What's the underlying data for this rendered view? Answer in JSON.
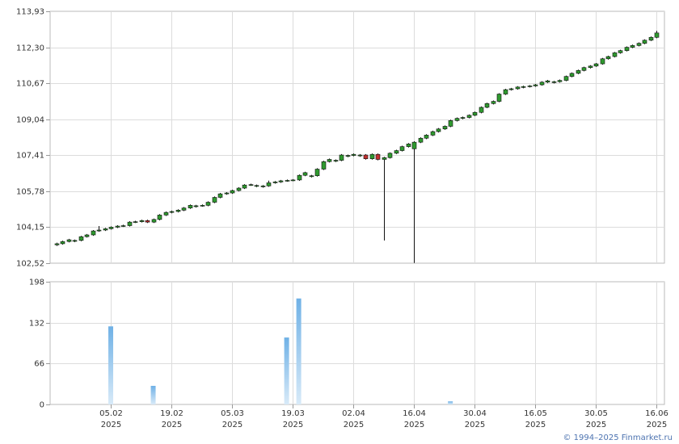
{
  "chart_data": [
    {
      "type": "candlestick",
      "up_color": "#2f9a2f",
      "down_color": "#c23030",
      "grid": true,
      "xlim": [
        -1,
        100.3
      ],
      "xticks": [
        {
          "value": 9,
          "label": "05.02",
          "year": "2025"
        },
        {
          "value": 19,
          "label": "19.02",
          "year": "2025"
        },
        {
          "value": 29,
          "label": "05.03",
          "year": "2025"
        },
        {
          "value": 39,
          "label": "19.03",
          "year": "2025"
        },
        {
          "value": 49,
          "label": "02.04",
          "year": "2025"
        },
        {
          "value": 59,
          "label": "16.04",
          "year": "2025"
        },
        {
          "value": 69,
          "label": "30.04",
          "year": "2025"
        },
        {
          "value": 79,
          "label": "16.05",
          "year": "2025"
        },
        {
          "value": 89,
          "label": "30.05",
          "year": "2025"
        },
        {
          "value": 99,
          "label": "16.06",
          "year": "2025"
        }
      ],
      "ylim": [
        102.52,
        113.93
      ],
      "yticks": [
        {
          "value": 102.52,
          "label": "102,52"
        },
        {
          "value": 104.15,
          "label": "104,15"
        },
        {
          "value": 105.78,
          "label": "105,78"
        },
        {
          "value": 107.41,
          "label": "107,41"
        },
        {
          "value": 109.04,
          "label": "109,04"
        },
        {
          "value": 110.67,
          "label": "110,67"
        },
        {
          "value": 112.3,
          "label": "112,30"
        },
        {
          "value": 113.93,
          "label": "113,93"
        }
      ],
      "candles": [
        [
          103.35,
          103.45,
          103.3,
          103.4
        ],
        [
          103.4,
          103.54,
          103.36,
          103.5
        ],
        [
          103.5,
          103.62,
          103.46,
          103.58
        ],
        [
          103.51,
          103.59,
          103.47,
          103.55
        ],
        [
          103.55,
          103.76,
          103.51,
          103.72
        ],
        [
          103.72,
          103.84,
          103.68,
          103.8
        ],
        [
          103.8,
          104.02,
          103.76,
          103.98
        ],
        [
          103.98,
          104.2,
          103.94,
          104.02
        ],
        [
          104.02,
          104.12,
          103.98,
          104.08
        ],
        [
          104.08,
          104.19,
          104.04,
          104.15
        ],
        [
          104.15,
          104.24,
          104.11,
          104.2
        ],
        [
          104.2,
          104.26,
          104.16,
          104.22
        ],
        [
          104.22,
          104.42,
          104.18,
          104.38
        ],
        [
          104.38,
          104.44,
          104.34,
          104.4
        ],
        [
          104.4,
          104.49,
          104.36,
          104.45
        ],
        [
          104.45,
          104.49,
          104.34,
          104.38
        ],
        [
          104.38,
          104.54,
          104.34,
          104.5
        ],
        [
          104.5,
          104.74,
          104.46,
          104.7
        ],
        [
          104.7,
          104.86,
          104.66,
          104.82
        ],
        [
          104.82,
          104.9,
          104.78,
          104.86
        ],
        [
          104.86,
          104.96,
          104.82,
          104.92
        ],
        [
          104.92,
          105.06,
          104.88,
          105.02
        ],
        [
          105.02,
          105.18,
          104.98,
          105.14
        ],
        [
          105.08,
          105.16,
          105.04,
          105.12
        ],
        [
          105.12,
          105.18,
          105.08,
          105.14
        ],
        [
          105.14,
          105.32,
          105.1,
          105.28
        ],
        [
          105.28,
          105.54,
          105.24,
          105.5
        ],
        [
          105.5,
          105.7,
          105.46,
          105.66
        ],
        [
          105.66,
          105.74,
          105.62,
          105.7
        ],
        [
          105.7,
          105.85,
          105.66,
          105.81
        ],
        [
          105.81,
          105.96,
          105.77,
          105.92
        ],
        [
          105.92,
          106.1,
          105.88,
          106.06
        ],
        [
          106.06,
          106.12,
          106.02,
          106.08
        ],
        [
          106.0,
          106.08,
          105.96,
          106.04
        ],
        [
          105.98,
          106.06,
          105.94,
          106.02
        ],
        [
          106.02,
          106.26,
          105.98,
          106.16
        ],
        [
          106.16,
          106.24,
          106.12,
          106.2
        ],
        [
          106.2,
          106.29,
          106.16,
          106.25
        ],
        [
          106.25,
          106.31,
          106.21,
          106.27
        ],
        [
          106.27,
          106.33,
          106.23,
          106.29
        ],
        [
          106.29,
          106.54,
          106.25,
          106.5
        ],
        [
          106.5,
          106.66,
          106.46,
          106.62
        ],
        [
          106.44,
          106.52,
          106.4,
          106.48
        ],
        [
          106.48,
          106.82,
          106.44,
          106.78
        ],
        [
          106.78,
          107.16,
          106.74,
          107.12
        ],
        [
          107.12,
          107.26,
          107.08,
          107.22
        ],
        [
          107.14,
          107.22,
          107.1,
          107.18
        ],
        [
          107.18,
          107.46,
          107.14,
          107.42
        ],
        [
          107.36,
          107.44,
          107.32,
          107.4
        ],
        [
          107.4,
          107.49,
          107.36,
          107.45
        ],
        [
          107.38,
          107.46,
          107.34,
          107.42
        ],
        [
          107.42,
          107.46,
          107.21,
          107.25
        ],
        [
          107.25,
          107.49,
          107.21,
          107.45
        ],
        [
          107.45,
          107.49,
          107.18,
          107.22
        ],
        [
          107.22,
          107.34,
          103.55,
          107.3
        ],
        [
          107.3,
          107.54,
          107.26,
          107.5
        ],
        [
          107.5,
          107.66,
          107.46,
          107.62
        ],
        [
          107.62,
          107.84,
          107.58,
          107.8
        ],
        [
          107.8,
          107.96,
          107.76,
          107.92
        ],
        [
          107.7,
          108.04,
          102.53,
          108.0
        ],
        [
          108.0,
          108.22,
          107.96,
          108.18
        ],
        [
          108.18,
          108.36,
          108.14,
          108.32
        ],
        [
          108.32,
          108.52,
          108.28,
          108.48
        ],
        [
          108.48,
          108.64,
          108.44,
          108.6
        ],
        [
          108.6,
          108.76,
          108.56,
          108.72
        ],
        [
          108.72,
          109.02,
          108.68,
          108.98
        ],
        [
          108.98,
          109.12,
          108.94,
          109.08
        ],
        [
          109.08,
          109.16,
          109.04,
          109.12
        ],
        [
          109.12,
          109.26,
          109.08,
          109.22
        ],
        [
          109.22,
          109.39,
          109.18,
          109.35
        ],
        [
          109.35,
          109.62,
          109.31,
          109.58
        ],
        [
          109.58,
          109.79,
          109.54,
          109.75
        ],
        [
          109.75,
          109.89,
          109.71,
          109.85
        ],
        [
          109.85,
          110.22,
          109.81,
          110.18
        ],
        [
          110.18,
          110.42,
          110.14,
          110.38
        ],
        [
          110.38,
          110.46,
          110.34,
          110.42
        ],
        [
          110.42,
          110.54,
          110.38,
          110.5
        ],
        [
          110.48,
          110.56,
          110.44,
          110.52
        ],
        [
          110.52,
          110.59,
          110.48,
          110.55
        ],
        [
          110.55,
          110.64,
          110.51,
          110.6
        ],
        [
          110.6,
          110.76,
          110.56,
          110.72
        ],
        [
          110.72,
          110.82,
          110.68,
          110.78
        ],
        [
          110.7,
          110.78,
          110.66,
          110.74
        ],
        [
          110.74,
          110.84,
          110.7,
          110.8
        ],
        [
          110.8,
          111.02,
          110.76,
          110.98
        ],
        [
          110.98,
          111.16,
          110.94,
          111.12
        ],
        [
          111.12,
          111.29,
          111.08,
          111.25
        ],
        [
          111.25,
          111.42,
          111.21,
          111.38
        ],
        [
          111.38,
          111.49,
          111.34,
          111.45
        ],
        [
          111.45,
          111.59,
          111.41,
          111.55
        ],
        [
          111.55,
          111.82,
          111.51,
          111.78
        ],
        [
          111.78,
          111.92,
          111.74,
          111.88
        ],
        [
          111.88,
          112.09,
          111.84,
          112.05
        ],
        [
          112.05,
          112.19,
          112.01,
          112.15
        ],
        [
          112.15,
          112.34,
          112.11,
          112.3
        ],
        [
          112.3,
          112.42,
          112.26,
          112.38
        ],
        [
          112.38,
          112.52,
          112.34,
          112.48
        ],
        [
          112.48,
          112.66,
          112.44,
          112.62
        ],
        [
          112.62,
          112.79,
          112.58,
          112.75
        ],
        [
          112.75,
          113.05,
          112.71,
          112.95
        ]
      ]
    },
    {
      "type": "bar",
      "color": "#6fb1e6",
      "grid": true,
      "xlim": [
        -1,
        100.3
      ],
      "ylim": [
        0,
        198
      ],
      "yticks": [
        0,
        66,
        132,
        198
      ],
      "x": [
        9,
        16,
        38,
        40,
        65
      ],
      "values": [
        126,
        30,
        108,
        171,
        5
      ]
    }
  ],
  "copyright": "© 1994–2025 Finmarket.ru"
}
